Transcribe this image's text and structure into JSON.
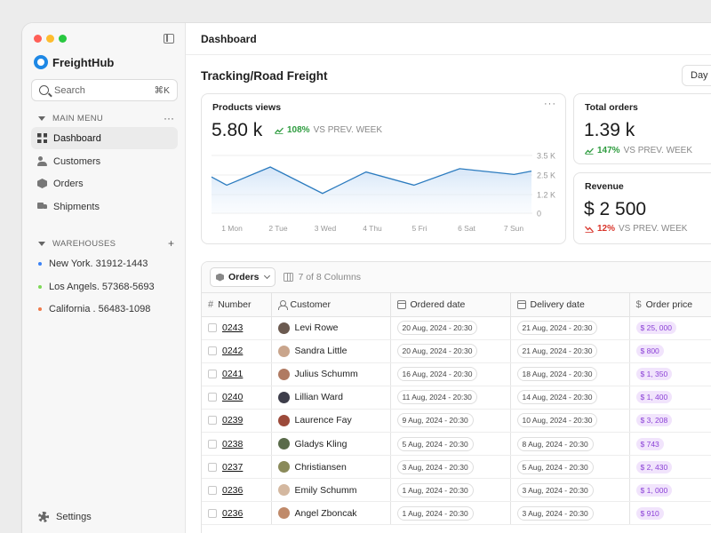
{
  "app": {
    "name": "FreightHub",
    "traffic_colors": [
      "#ff5f57",
      "#febc2e",
      "#28c840"
    ],
    "accent": "#1e88e5"
  },
  "search": {
    "placeholder": "Search",
    "shortcut": "⌘K"
  },
  "main_menu": {
    "label": "MAIN MENU",
    "action": "···",
    "items": [
      {
        "label": "Dashboard",
        "icon": "grid-icon",
        "active": true
      },
      {
        "label": "Customers",
        "icon": "users-icon"
      },
      {
        "label": "Orders",
        "icon": "box-icon"
      },
      {
        "label": "Shipments",
        "icon": "truck-icon"
      }
    ]
  },
  "warehouses": {
    "label": "WAREHOUSES",
    "action": "+",
    "items": [
      {
        "label": "New York. 31912-1443",
        "color": "#3b82f6"
      },
      {
        "label": "Los Angels. 57368-5693",
        "color": "#7ed957"
      },
      {
        "label": "California . 56483-1098",
        "color": "#f07a4a"
      }
    ]
  },
  "settings_label": "Settings",
  "header": {
    "title": "Dashboard"
  },
  "page": {
    "title": "Tracking/Road Freight",
    "period": "Day"
  },
  "products_card": {
    "title": "Products views",
    "more": "···",
    "value": "5.80 k",
    "change": "108%",
    "vs": "VS PREV. WEEK"
  },
  "orders_card": {
    "title": "Total orders",
    "value": "1.39 k",
    "change": "147%",
    "vs": "VS PREV. WEEK"
  },
  "revenue_card": {
    "title": "Revenue",
    "value": "$ 2 500",
    "change": "12%",
    "vs": "VS PREV. WEEK"
  },
  "chart_data": {
    "type": "area",
    "x": [
      "1 Mon",
      "2 Tue",
      "3 Wed",
      "4 Thu",
      "5 Fri",
      "6 Sat",
      "7 Sun"
    ],
    "y_ticks": [
      "3.5 K",
      "2.5 K",
      "1.2 K",
      "0"
    ],
    "ylim": [
      0,
      3.5
    ],
    "points": [
      {
        "x": 0.0,
        "y": 2.2
      },
      {
        "x": 0.35,
        "y": 1.7
      },
      {
        "x": 1.35,
        "y": 2.8
      },
      {
        "x": 2.55,
        "y": 1.2
      },
      {
        "x": 3.55,
        "y": 2.5
      },
      {
        "x": 4.65,
        "y": 1.7
      },
      {
        "x": 5.7,
        "y": 2.7
      },
      {
        "x": 6.95,
        "y": 2.35
      },
      {
        "x": 7.35,
        "y": 2.55
      }
    ],
    "color": "#2b7bbf",
    "grid": true
  },
  "table": {
    "toolbar": {
      "view_label": "Orders",
      "columns_info": "7 of 8 Columns"
    },
    "columns": [
      "Number",
      "Customer",
      "Ordered date",
      "Delivery date",
      "Order price"
    ],
    "rows": [
      {
        "number": "0243",
        "customer": "Levi Rowe",
        "ordered": "20 Aug, 2024 - 20:30",
        "delivery": "21 Aug, 2024 - 20:30",
        "price": "$ 25, 000",
        "avatar": "#6b5a50"
      },
      {
        "number": "0242",
        "customer": "Sandra Little",
        "ordered": "20 Aug, 2024 - 20:30",
        "delivery": "21 Aug, 2024 - 20:30",
        "price": "$ 800",
        "avatar": "#c9a58c"
      },
      {
        "number": "0241",
        "customer": "Julius Schumm",
        "ordered": "16 Aug, 2024 - 20:30",
        "delivery": "18 Aug, 2024 - 20:30",
        "price": "$ 1, 350",
        "avatar": "#b07a62"
      },
      {
        "number": "0240",
        "customer": "Lillian Ward",
        "ordered": "11 Aug, 2024 - 20:30",
        "delivery": "14 Aug, 2024 - 20:30",
        "price": "$ 1, 400",
        "avatar": "#3d3d4a"
      },
      {
        "number": "0239",
        "customer": "Laurence Fay",
        "ordered": "9 Aug, 2024 - 20:30",
        "delivery": "10 Aug, 2024 - 20:30",
        "price": "$ 3, 208",
        "avatar": "#9c4a3a"
      },
      {
        "number": "0238",
        "customer": "Gladys Kling",
        "ordered": "5 Aug, 2024 - 20:30",
        "delivery": "8 Aug, 2024 - 20:30",
        "price": "$ 743",
        "avatar": "#5a6b4a"
      },
      {
        "number": "0237",
        "customer": "Christiansen",
        "ordered": "3 Aug, 2024 - 20:30",
        "delivery": "5 Aug, 2024 - 20:30",
        "price": "$ 2, 430",
        "avatar": "#8a8a5a"
      },
      {
        "number": "0236",
        "customer": "Emily Schumm",
        "ordered": "1 Aug, 2024 - 20:30",
        "delivery": "3 Aug, 2024 - 20:30",
        "price": "$ 1, 000",
        "avatar": "#d4b8a0"
      },
      {
        "number": "0236",
        "customer": "Angel Zboncak",
        "ordered": "1 Aug, 2024 - 20:30",
        "delivery": "3 Aug, 2024 - 20:30",
        "price": "$ 910",
        "avatar": "#c08a6a"
      }
    ]
  }
}
